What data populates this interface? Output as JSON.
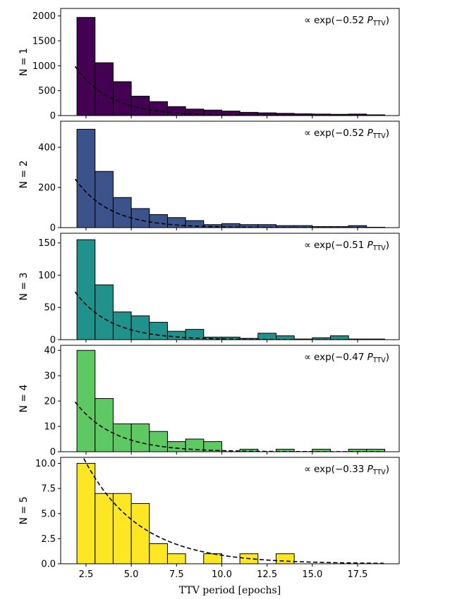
{
  "figure": {
    "xlabel": "TTV period [epochs]"
  },
  "chart_data": [
    {
      "type": "bar",
      "panel_label": "N = 1",
      "annotation": "∝ exp(−0.52 P_TTV)",
      "annotation_prefix": "∝ exp(−0.52",
      "annotation_var": "P",
      "annotation_sub": "TTV",
      "annotation_suffix": ")",
      "fit_rate": 0.52,
      "color": "#440154",
      "bin_edges": [
        2,
        3,
        4,
        5,
        6,
        7,
        8,
        9,
        10,
        11,
        12,
        13,
        14,
        15,
        16,
        17,
        18,
        19
      ],
      "values": [
        1970,
        1060,
        680,
        390,
        280,
        180,
        130,
        110,
        90,
        65,
        55,
        45,
        35,
        30,
        25,
        30,
        15
      ],
      "ylim": [
        0,
        2150
      ],
      "yticks": [
        0,
        500,
        1000,
        1500,
        2000
      ],
      "yticklabels": [
        "0",
        "500",
        "1000",
        "1500",
        "2000"
      ],
      "fit_amplitude": 2650
    },
    {
      "type": "bar",
      "panel_label": "N = 2",
      "annotation": "∝ exp(−0.52 P_TTV)",
      "annotation_prefix": "∝ exp(−0.52",
      "annotation_var": "P",
      "annotation_sub": "TTV",
      "annotation_suffix": ")",
      "fit_rate": 0.52,
      "color": "#3b528b",
      "bin_edges": [
        2,
        3,
        4,
        5,
        6,
        7,
        8,
        9,
        10,
        11,
        12,
        13,
        14,
        15,
        16,
        17,
        18,
        19
      ],
      "values": [
        490,
        280,
        150,
        95,
        65,
        50,
        35,
        15,
        20,
        15,
        15,
        10,
        10,
        5,
        5,
        10,
        2
      ],
      "ylim": [
        0,
        530
      ],
      "yticks": [
        0,
        200,
        400
      ],
      "yticklabels": [
        "0",
        "200",
        "400"
      ],
      "fit_amplitude": 650
    },
    {
      "type": "bar",
      "panel_label": "N = 3",
      "annotation": "∝ exp(−0.51 P_TTV)",
      "annotation_prefix": "∝ exp(−0.51",
      "annotation_var": "P",
      "annotation_sub": "TTV",
      "annotation_suffix": ")",
      "fit_rate": 0.51,
      "color": "#21918c",
      "bin_edges": [
        2,
        3,
        4,
        5,
        6,
        7,
        8,
        9,
        10,
        11,
        12,
        13,
        14,
        15,
        16,
        17,
        18,
        19
      ],
      "values": [
        155,
        85,
        43,
        37,
        27,
        13,
        16,
        4,
        4,
        2,
        10,
        6,
        1,
        3,
        6,
        1,
        1
      ],
      "ylim": [
        0,
        165
      ],
      "yticks": [
        0,
        50,
        100,
        150
      ],
      "yticklabels": [
        "0",
        "50",
        "100",
        "150"
      ],
      "fit_amplitude": 195
    },
    {
      "type": "bar",
      "panel_label": "N = 4",
      "annotation": "∝ exp(−0.47 P_TTV)",
      "annotation_prefix": "∝ exp(−0.47",
      "annotation_var": "P",
      "annotation_sub": "TTV",
      "annotation_suffix": ")",
      "fit_rate": 0.47,
      "color": "#5ec962",
      "bin_edges": [
        2,
        3,
        4,
        5,
        6,
        7,
        8,
        9,
        10,
        11,
        12,
        13,
        14,
        15,
        16,
        17,
        18,
        19
      ],
      "values": [
        40,
        21,
        11,
        11,
        8,
        4,
        5,
        4,
        0,
        1,
        0,
        1,
        0,
        1,
        0,
        1,
        1
      ],
      "ylim": [
        0,
        42
      ],
      "yticks": [
        0,
        10,
        20,
        30,
        40
      ],
      "yticklabels": [
        "0",
        "10",
        "20",
        "30",
        "40"
      ],
      "fit_amplitude": 48
    },
    {
      "type": "bar",
      "panel_label": "N = 5",
      "annotation": "∝ exp(−0.33 P_TTV)",
      "annotation_prefix": "∝ exp(−0.33",
      "annotation_var": "P",
      "annotation_sub": "TTV",
      "annotation_suffix": ")",
      "fit_rate": 0.33,
      "color": "#fde725",
      "bin_edges": [
        2,
        3,
        4,
        5,
        6,
        7,
        8,
        9,
        10,
        11,
        12,
        13,
        14,
        15,
        16,
        17,
        18,
        19
      ],
      "values": [
        10,
        7,
        7,
        6,
        2,
        1,
        0,
        1,
        0,
        1,
        0,
        1,
        0,
        0,
        0,
        0,
        0
      ],
      "ylim": [
        0,
        10.6
      ],
      "yticks": [
        0,
        2.5,
        5,
        7.5,
        10
      ],
      "yticklabels": [
        "0.0",
        "2.5",
        "5.0",
        "7.5",
        "10.0"
      ],
      "fit_amplitude": 23
    }
  ],
  "xaxis": {
    "xlim": [
      1.1,
      19.8
    ],
    "xticks": [
      2.5,
      5.0,
      7.5,
      10.0,
      12.5,
      15.0,
      17.5
    ],
    "xticklabels": [
      "2.5",
      "5.0",
      "7.5",
      "10.0",
      "12.5",
      "15.0",
      "17.5"
    ]
  }
}
